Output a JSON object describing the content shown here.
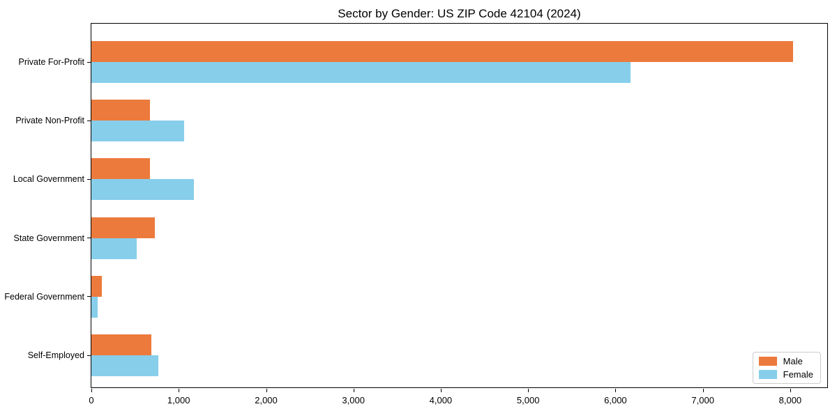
{
  "chart_data": {
    "type": "bar",
    "orientation": "horizontal",
    "title": "Sector by Gender: US ZIP Code 42104 (2024)",
    "categories": [
      "Private For-Profit",
      "Private Non-Profit",
      "Local Government",
      "State Government",
      "Federal Government",
      "Self-Employed"
    ],
    "series": [
      {
        "name": "Male",
        "color": "#ec7a3c",
        "values": [
          8030,
          670,
          670,
          730,
          120,
          690
        ]
      },
      {
        "name": "Female",
        "color": "#87ceeb",
        "values": [
          6170,
          1060,
          1170,
          520,
          70,
          770
        ]
      }
    ],
    "xlabel": "",
    "ylabel": "",
    "xlim": [
      0,
      8440
    ],
    "xticks": [
      0,
      1000,
      2000,
      3000,
      4000,
      5000,
      6000,
      7000,
      8000
    ],
    "xtick_labels": [
      "0",
      "1,000",
      "2,000",
      "3,000",
      "4,000",
      "5,000",
      "6,000",
      "7,000",
      "8,000"
    ],
    "grid": false,
    "legend_position": "lower right"
  },
  "colors": {
    "male": "#ec7a3c",
    "female": "#87ceeb",
    "axis": "#000000",
    "legend_border": "#cccccc",
    "background": "#ffffff"
  }
}
